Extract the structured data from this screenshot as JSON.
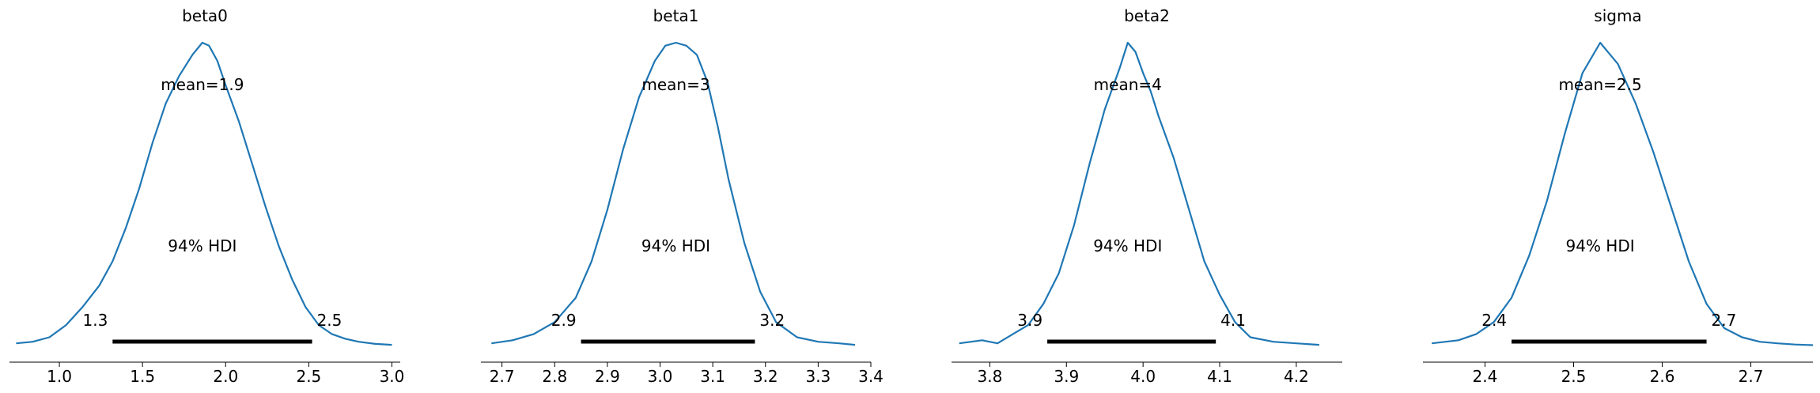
{
  "chart_data": [
    {
      "type": "area",
      "title": "beta0",
      "mean_label": "mean=1.9",
      "hdi_label": "94% HDI",
      "hdi": [
        1.32,
        2.52
      ],
      "hdi_low_label": "1.3",
      "hdi_high_label": "2.5",
      "xlim": [
        0.7,
        3.05
      ],
      "xticks": [
        1.0,
        1.5,
        2.0,
        2.5,
        3.0
      ],
      "xtick_labels": [
        "1.0",
        "1.5",
        "2.0",
        "2.5",
        "3.0"
      ],
      "density": {
        "x": [
          0.74,
          0.84,
          0.94,
          1.04,
          1.14,
          1.24,
          1.32,
          1.4,
          1.48,
          1.56,
          1.64,
          1.72,
          1.8,
          1.86,
          1.9,
          1.95,
          2.0,
          2.08,
          2.16,
          2.24,
          2.32,
          2.4,
          2.48,
          2.56,
          2.64,
          2.72,
          2.8,
          2.9,
          3.0
        ],
        "y": [
          0.01,
          0.015,
          0.03,
          0.07,
          0.13,
          0.2,
          0.28,
          0.39,
          0.52,
          0.67,
          0.8,
          0.89,
          0.96,
          1.0,
          0.99,
          0.94,
          0.86,
          0.74,
          0.6,
          0.46,
          0.33,
          0.22,
          0.13,
          0.07,
          0.04,
          0.025,
          0.015,
          0.008,
          0.005
        ]
      }
    },
    {
      "type": "area",
      "title": "beta1",
      "mean_label": "mean=3",
      "hdi_label": "94% HDI",
      "hdi": [
        2.85,
        3.18
      ],
      "hdi_low_label": "2.9",
      "hdi_high_label": "3.2",
      "xlim": [
        2.66,
        3.4
      ],
      "xticks": [
        2.7,
        2.8,
        2.9,
        3.0,
        3.1,
        3.2,
        3.3,
        3.4
      ],
      "xtick_labels": [
        "2.7",
        "2.8",
        "2.9",
        "3.0",
        "3.1",
        "3.2",
        "3.3",
        "3.4"
      ],
      "density": {
        "x": [
          2.68,
          2.72,
          2.76,
          2.8,
          2.84,
          2.87,
          2.9,
          2.93,
          2.96,
          2.99,
          3.01,
          3.03,
          3.05,
          3.07,
          3.09,
          3.11,
          3.13,
          3.16,
          3.19,
          3.22,
          3.26,
          3.3,
          3.34,
          3.37
        ],
        "y": [
          0.01,
          0.02,
          0.04,
          0.08,
          0.16,
          0.28,
          0.45,
          0.65,
          0.82,
          0.94,
          0.99,
          1.0,
          0.99,
          0.96,
          0.87,
          0.72,
          0.55,
          0.34,
          0.18,
          0.08,
          0.03,
          0.015,
          0.01,
          0.005
        ]
      }
    },
    {
      "type": "area",
      "title": "beta2",
      "mean_label": "mean=4",
      "hdi_label": "94% HDI",
      "hdi": [
        3.875,
        4.095
      ],
      "hdi_low_label": "3.9",
      "hdi_high_label": "4.1",
      "xlim": [
        3.75,
        4.26
      ],
      "xticks": [
        3.8,
        3.9,
        4.0,
        4.1,
        4.2
      ],
      "xtick_labels": [
        "3.8",
        "3.9",
        "4.0",
        "4.1",
        "4.2"
      ],
      "density": {
        "x": [
          3.76,
          3.79,
          3.81,
          3.83,
          3.85,
          3.87,
          3.89,
          3.91,
          3.93,
          3.95,
          3.97,
          3.98,
          3.99,
          4.0,
          4.01,
          4.02,
          4.04,
          4.06,
          4.08,
          4.1,
          4.12,
          4.14,
          4.17,
          4.2,
          4.23
        ],
        "y": [
          0.01,
          0.02,
          0.01,
          0.04,
          0.07,
          0.14,
          0.24,
          0.4,
          0.6,
          0.78,
          0.92,
          1.0,
          0.97,
          0.9,
          0.84,
          0.76,
          0.62,
          0.45,
          0.28,
          0.17,
          0.08,
          0.03,
          0.015,
          0.01,
          0.005
        ]
      }
    },
    {
      "type": "area",
      "title": "sigma",
      "mean_label": "mean=2.5",
      "hdi_label": "94% HDI",
      "hdi": [
        2.43,
        2.65
      ],
      "hdi_low_label": "2.4",
      "hdi_high_label": "2.7",
      "xlim": [
        2.33,
        2.77
      ],
      "xticks": [
        2.4,
        2.5,
        2.6,
        2.7
      ],
      "xtick_labels": [
        "2.4",
        "2.5",
        "2.6",
        "2.7"
      ],
      "density": {
        "x": [
          2.34,
          2.37,
          2.39,
          2.41,
          2.43,
          2.45,
          2.47,
          2.49,
          2.51,
          2.53,
          2.55,
          2.57,
          2.59,
          2.61,
          2.63,
          2.65,
          2.67,
          2.69,
          2.71,
          2.73,
          2.75,
          2.77
        ],
        "y": [
          0.01,
          0.02,
          0.04,
          0.08,
          0.16,
          0.3,
          0.48,
          0.7,
          0.9,
          1.0,
          0.93,
          0.8,
          0.64,
          0.46,
          0.28,
          0.14,
          0.06,
          0.03,
          0.015,
          0.01,
          0.006,
          0.004
        ]
      }
    }
  ],
  "colors": {
    "curve": "#1f77b4",
    "hdi_bar": "#000000",
    "axis": "#000000"
  }
}
